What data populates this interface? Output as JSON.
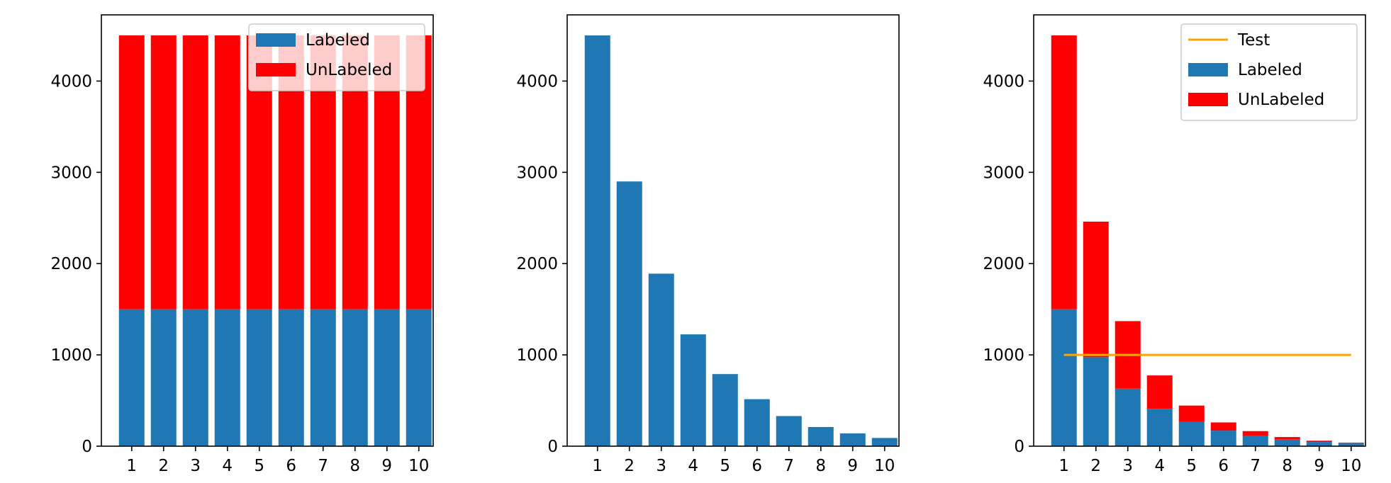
{
  "chart_data": [
    {
      "type": "bar",
      "stacked": true,
      "categories": [
        "1",
        "2",
        "3",
        "4",
        "5",
        "6",
        "7",
        "8",
        "9",
        "10"
      ],
      "series": [
        {
          "name": "Labeled",
          "color": "#1f77b4",
          "values": [
            1500,
            1500,
            1500,
            1500,
            1500,
            1500,
            1500,
            1500,
            1500,
            1500
          ]
        },
        {
          "name": "UnLabeled",
          "color": "#ff0000",
          "values": [
            3000,
            3000,
            3000,
            3000,
            3000,
            3000,
            3000,
            3000,
            3000,
            3000
          ]
        }
      ],
      "ylim": [
        0,
        4725
      ],
      "yticks": [
        "0",
        "1000",
        "2000",
        "3000",
        "4000"
      ],
      "legend": "top-right",
      "grid": false
    },
    {
      "type": "bar",
      "categories": [
        "1",
        "2",
        "3",
        "4",
        "5",
        "6",
        "7",
        "8",
        "9",
        "10"
      ],
      "series": [
        {
          "color": "#1f77b4",
          "values": [
            4500,
            2900,
            1890,
            1225,
            790,
            515,
            330,
            210,
            140,
            90
          ]
        }
      ],
      "ylim": [
        0,
        4725
      ],
      "yticks": [
        "0",
        "1000",
        "2000",
        "3000",
        "4000"
      ],
      "grid": false
    },
    {
      "type": "bar",
      "stacked": true,
      "categories": [
        "1",
        "2",
        "3",
        "4",
        "5",
        "6",
        "7",
        "8",
        "9",
        "10"
      ],
      "series": [
        {
          "name": "Labeled",
          "color": "#1f77b4",
          "values": [
            1500,
            975,
            630,
            410,
            265,
            170,
            110,
            72,
            46,
            30
          ]
        },
        {
          "name": "UnLabeled",
          "color": "#ff0000",
          "values": [
            3000,
            1485,
            740,
            365,
            180,
            90,
            55,
            28,
            14,
            8
          ]
        }
      ],
      "lines": [
        {
          "name": "Test",
          "color": "#ffa500",
          "values": [
            1000,
            1000,
            1000,
            1000,
            1000,
            1000,
            1000,
            1000,
            1000,
            1000
          ]
        }
      ],
      "ylim": [
        0,
        4725
      ],
      "yticks": [
        "0",
        "1000",
        "2000",
        "3000",
        "4000"
      ],
      "legend": "top-right",
      "grid": false
    }
  ]
}
